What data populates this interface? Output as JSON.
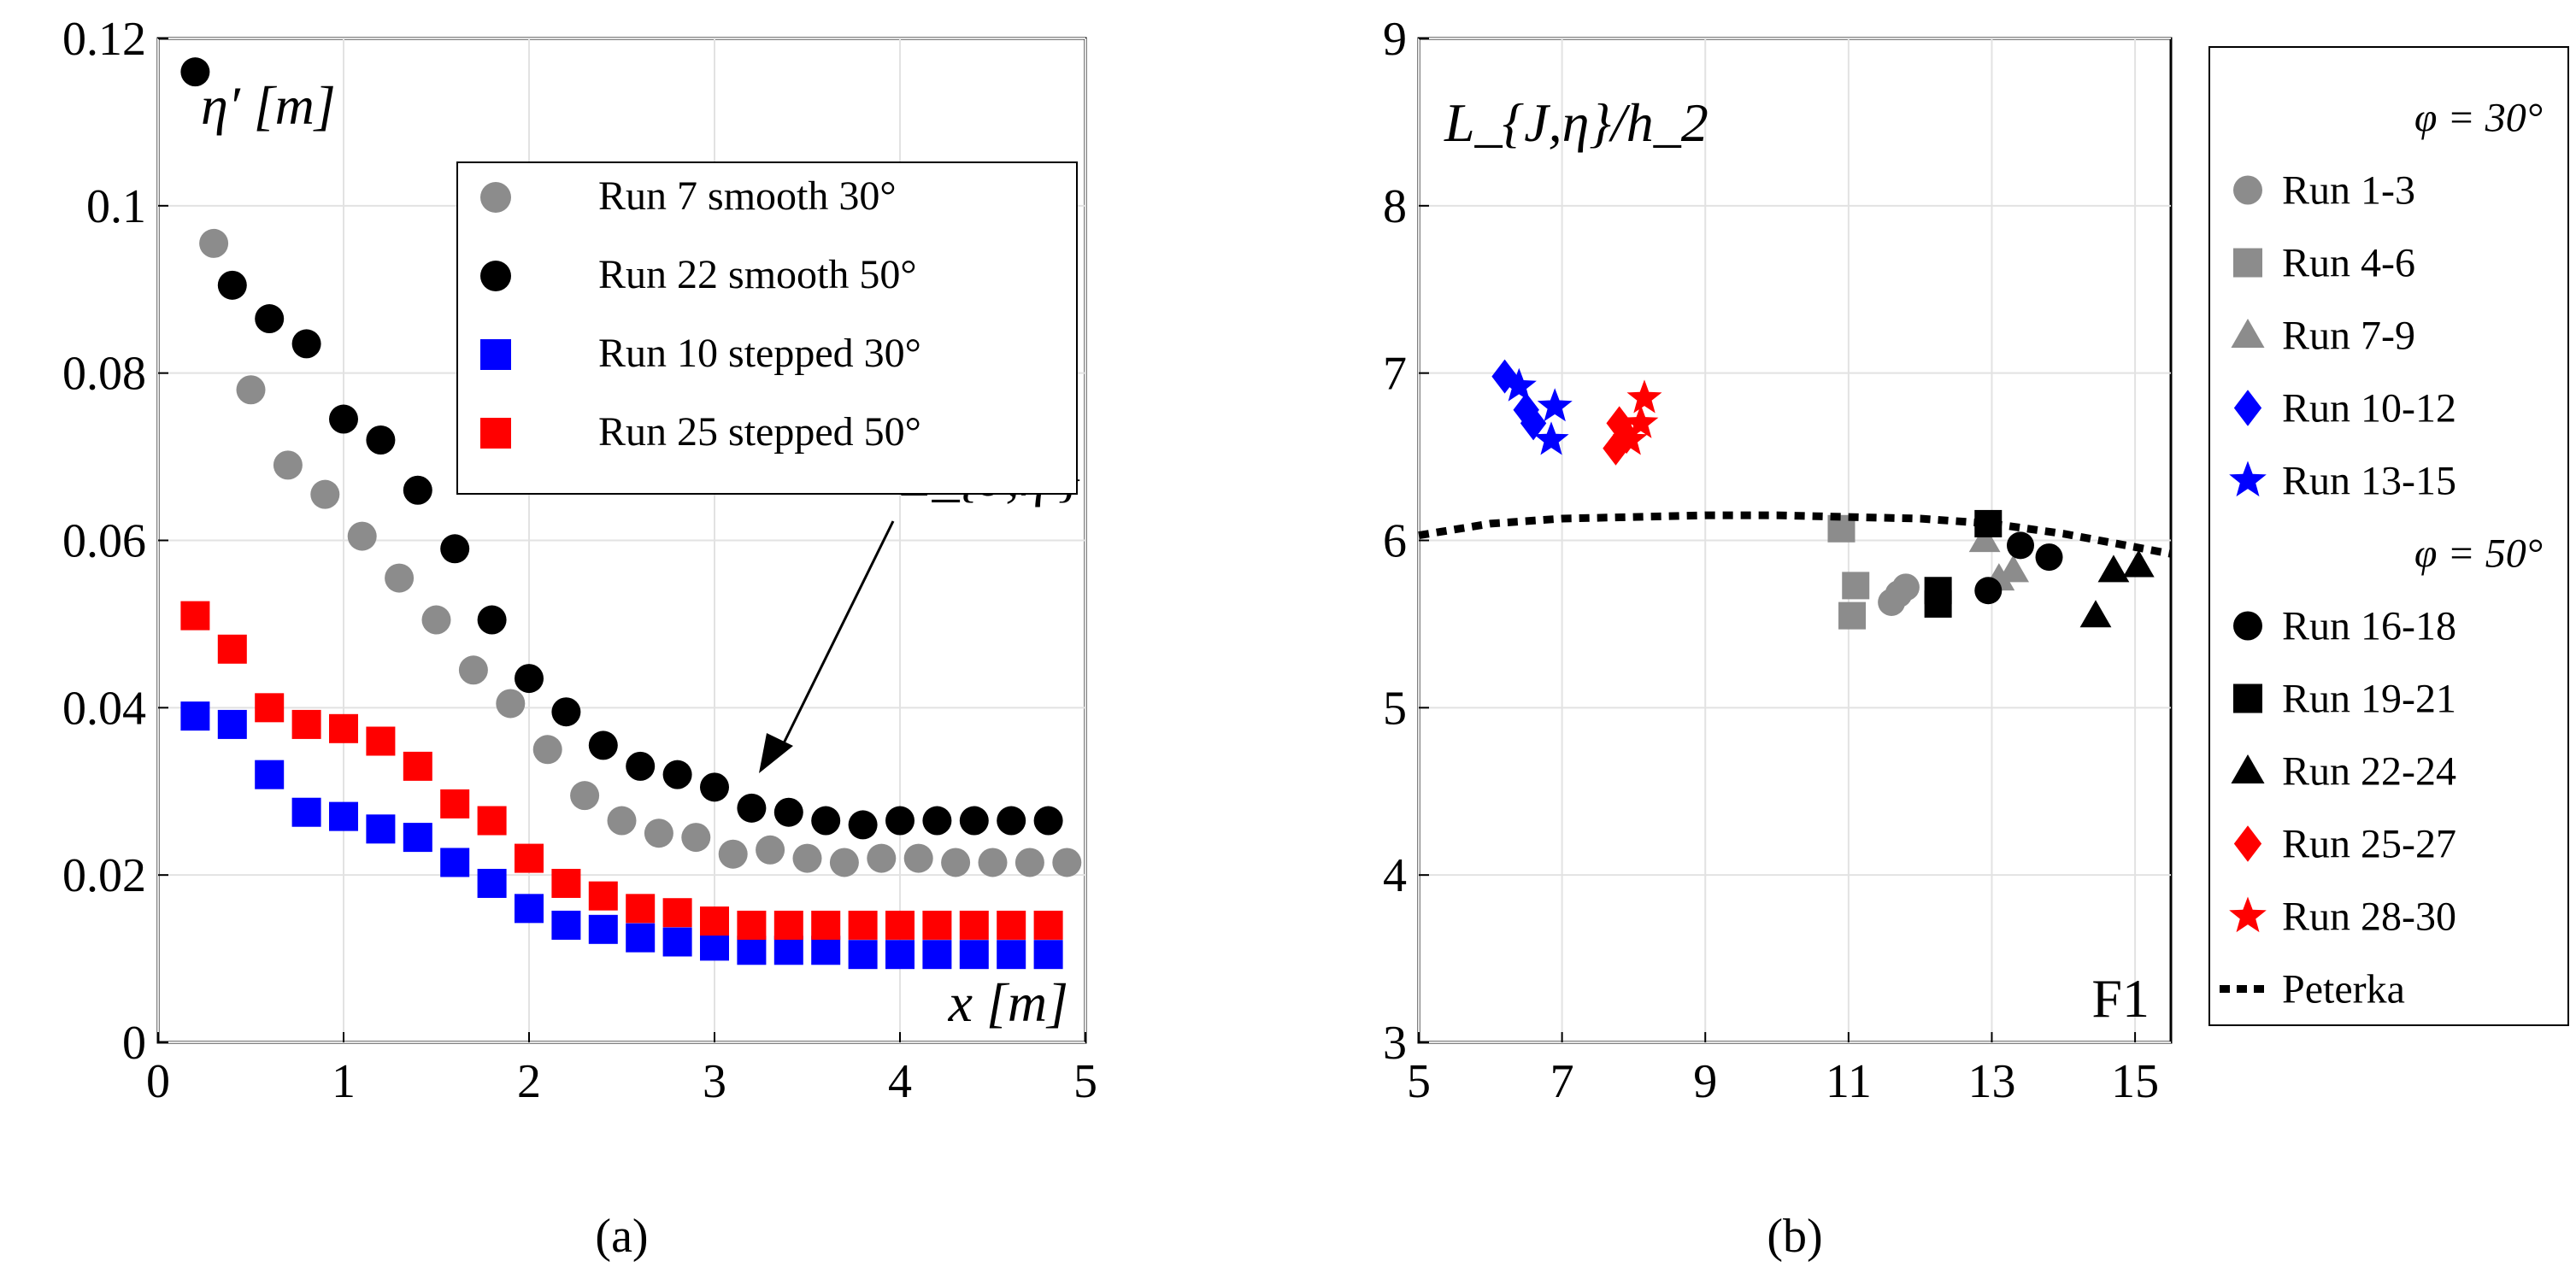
{
  "chart_data": [
    {
      "type": "scatter",
      "panel": "a",
      "caption": "(a)",
      "xlabel": "x [m]",
      "ylabel": "η′ [m]",
      "xlim": [
        0,
        5
      ],
      "ylim": [
        0,
        0.12
      ],
      "xticks": [
        "0",
        "1",
        "2",
        "3",
        "4",
        "5"
      ],
      "yticks": [
        "0",
        "0.02",
        "0.04",
        "0.06",
        "0.08",
        "0.1",
        "0.12"
      ],
      "grid": true,
      "legend_position": "top-right",
      "annotation": "L_{J,η′}",
      "series": [
        {
          "name": "Run 7 smooth 30°",
          "marker": "circle",
          "color": "#8c8c8c",
          "x": [
            0.3,
            0.5,
            0.7,
            0.9,
            1.1,
            1.3,
            1.5,
            1.7,
            1.9,
            2.1,
            2.3,
            2.5,
            2.7,
            2.9,
            3.1,
            3.3,
            3.5,
            3.7,
            3.9,
            4.1,
            4.3,
            4.5,
            4.7,
            4.9
          ],
          "y": [
            0.0955,
            0.078,
            0.069,
            0.0655,
            0.0605,
            0.0555,
            0.0505,
            0.0445,
            0.0405,
            0.035,
            0.0295,
            0.0265,
            0.025,
            0.0245,
            0.0225,
            0.023,
            0.022,
            0.0215,
            0.022,
            0.022,
            0.0215,
            0.0215,
            0.0215,
            0.0215
          ]
        },
        {
          "name": "Run 22 smooth 50°",
          "marker": "circle",
          "color": "#000000",
          "x": [
            0.2,
            0.4,
            0.6,
            0.8,
            1.0,
            1.2,
            1.4,
            1.6,
            1.8,
            2.0,
            2.2,
            2.4,
            2.6,
            2.8,
            3.0,
            3.2,
            3.4,
            3.6,
            3.8,
            4.0,
            4.2,
            4.4,
            4.6,
            4.8
          ],
          "y": [
            0.116,
            0.0905,
            0.0865,
            0.0835,
            0.0745,
            0.072,
            0.066,
            0.059,
            0.0505,
            0.0435,
            0.0395,
            0.0355,
            0.033,
            0.032,
            0.0305,
            0.028,
            0.0275,
            0.0265,
            0.026,
            0.0265,
            0.0265,
            0.0265,
            0.0265,
            0.0265
          ]
        },
        {
          "name": "Run 10 stepped 30°",
          "marker": "square",
          "color": "#0000ff",
          "x": [
            0.2,
            0.4,
            0.6,
            0.8,
            1.0,
            1.2,
            1.4,
            1.6,
            1.8,
            2.0,
            2.2,
            2.4,
            2.6,
            2.8,
            3.0,
            3.2,
            3.4,
            3.6,
            3.8,
            4.0,
            4.2,
            4.4,
            4.6,
            4.8
          ],
          "y": [
            0.039,
            0.038,
            0.032,
            0.0275,
            0.027,
            0.0255,
            0.0245,
            0.0215,
            0.019,
            0.016,
            0.014,
            0.0135,
            0.0125,
            0.012,
            0.0115,
            0.011,
            0.011,
            0.011,
            0.0105,
            0.0105,
            0.0105,
            0.0105,
            0.0105,
            0.0105
          ]
        },
        {
          "name": "Run 25 stepped 50°",
          "marker": "square",
          "color": "#ff0000",
          "x": [
            0.2,
            0.4,
            0.6,
            0.8,
            1.0,
            1.2,
            1.4,
            1.6,
            1.8,
            2.0,
            2.2,
            2.4,
            2.6,
            2.8,
            3.0,
            3.2,
            3.4,
            3.6,
            3.8,
            4.0,
            4.2,
            4.4,
            4.6,
            4.8
          ],
          "y": [
            0.051,
            0.047,
            0.04,
            0.038,
            0.0375,
            0.036,
            0.033,
            0.0285,
            0.0265,
            0.022,
            0.019,
            0.0175,
            0.016,
            0.0155,
            0.0145,
            0.014,
            0.014,
            0.014,
            0.014,
            0.014,
            0.014,
            0.014,
            0.014,
            0.014
          ]
        }
      ]
    },
    {
      "type": "scatter",
      "panel": "b",
      "caption": "(b)",
      "xlabel": "F1",
      "ylabel": "L_{J,η}/h_2",
      "xlim": [
        5,
        15.5
      ],
      "ylim": [
        3,
        9
      ],
      "xticks": [
        "5",
        "7",
        "9",
        "11",
        "13",
        "15"
      ],
      "yticks": [
        "3",
        "4",
        "5",
        "6",
        "7",
        "8",
        "9"
      ],
      "grid": true,
      "legend_position": "outside-right",
      "legend_headers": [
        "φ = 30°",
        "φ = 50°"
      ],
      "series": [
        {
          "name": "Run 1-3",
          "marker": "circle",
          "color": "#8c8c8c",
          "x": [
            11.6,
            11.7,
            11.8
          ],
          "y": [
            5.63,
            5.68,
            5.72
          ]
        },
        {
          "name": "Run 4-6",
          "marker": "square",
          "color": "#8c8c8c",
          "x": [
            10.9,
            11.05,
            11.1
          ],
          "y": [
            6.07,
            5.55,
            5.73
          ]
        },
        {
          "name": "Run 7-9",
          "marker": "triangle",
          "color": "#8c8c8c",
          "x": [
            12.9,
            13.1,
            13.3
          ],
          "y": [
            6.0,
            5.77,
            5.82
          ]
        },
        {
          "name": "Run 10-12",
          "marker": "diamond",
          "color": "#0000ff",
          "x": [
            6.2,
            6.5,
            6.6
          ],
          "y": [
            6.98,
            6.78,
            6.7
          ]
        },
        {
          "name": "Run 13-15",
          "marker": "star",
          "color": "#0000ff",
          "x": [
            6.4,
            6.85,
            6.9
          ],
          "y": [
            6.92,
            6.6,
            6.8
          ]
        },
        {
          "name": "Run 16-18",
          "marker": "circle",
          "color": "#000000",
          "x": [
            12.95,
            13.4,
            13.8
          ],
          "y": [
            5.7,
            5.97,
            5.9
          ]
        },
        {
          "name": "Run 19-21",
          "marker": "square",
          "color": "#000000",
          "x": [
            12.25,
            12.25,
            12.95
          ],
          "y": [
            5.62,
            5.7,
            6.1
          ]
        },
        {
          "name": "Run 22-24",
          "marker": "triangle",
          "color": "#000000",
          "x": [
            14.45,
            14.7,
            15.05
          ],
          "y": [
            5.55,
            5.82,
            5.85
          ]
        },
        {
          "name": "Run 25-27",
          "marker": "diamond",
          "color": "#ff0000",
          "x": [
            7.75,
            7.8,
            7.9
          ],
          "y": [
            6.55,
            6.7,
            6.62
          ]
        },
        {
          "name": "Run 28-30",
          "marker": "star",
          "color": "#ff0000",
          "x": [
            7.95,
            8.1,
            8.15
          ],
          "y": [
            6.6,
            6.7,
            6.85
          ]
        },
        {
          "name": "Peterka",
          "marker": "dotted-line",
          "color": "#000000",
          "x": [
            5,
            6,
            7,
            8,
            9,
            10,
            11,
            12,
            13,
            14,
            15,
            15.5
          ],
          "y": [
            6.03,
            6.1,
            6.13,
            6.14,
            6.15,
            6.15,
            6.14,
            6.13,
            6.1,
            6.04,
            5.96,
            5.92
          ]
        }
      ]
    }
  ]
}
